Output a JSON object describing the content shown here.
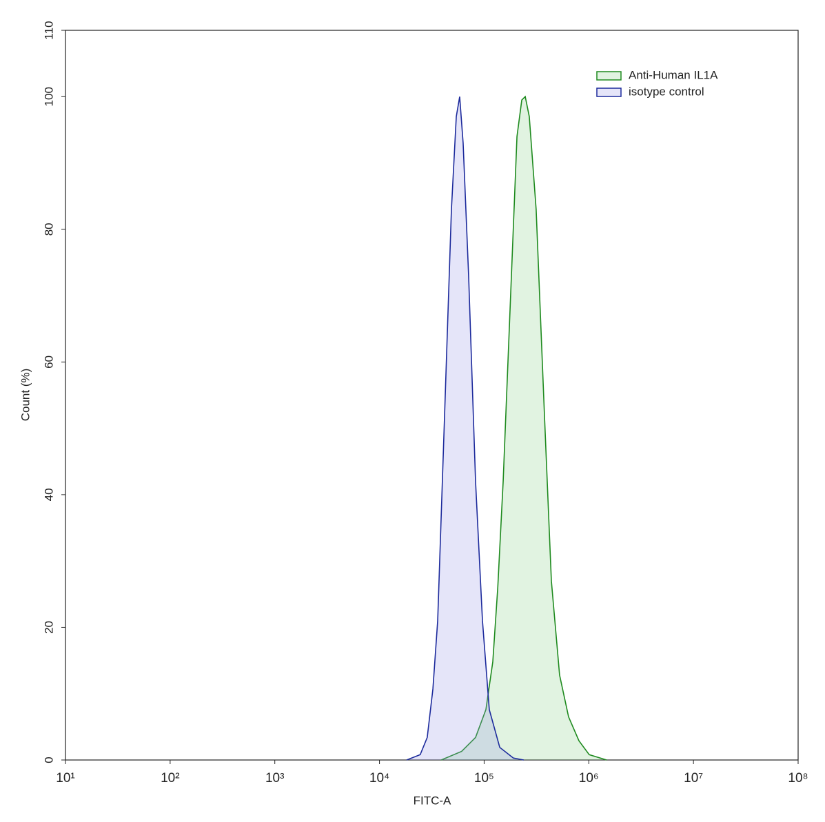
{
  "chart_data": {
    "type": "area",
    "xlabel": "FITC-A",
    "ylabel": "Count  (%)",
    "xscale": "log",
    "xlim": [
      10,
      100000000
    ],
    "xticks": [
      {
        "value": 10,
        "label": "10¹"
      },
      {
        "value": 100,
        "label": "10²"
      },
      {
        "value": 1000,
        "label": "10³"
      },
      {
        "value": 10000,
        "label": "10⁴"
      },
      {
        "value": 100000,
        "label": "10⁵"
      },
      {
        "value": 1000000,
        "label": "10⁶"
      },
      {
        "value": 10000000,
        "label": "10⁷"
      },
      {
        "value": 100000000,
        "label": "10⁸"
      }
    ],
    "ylim": [
      0,
      110
    ],
    "yticks": [
      0,
      20,
      40,
      60,
      80,
      100,
      110
    ],
    "legend": "upper right",
    "series": [
      {
        "name": "Anti-Human IL1A",
        "color": "#1e8a1e",
        "fill": "rgba(120,200,120,0.22)",
        "x": [
          38900,
          61000,
          82800,
          104000,
          121000,
          135000,
          152000,
          177000,
          206000,
          229000,
          247000,
          270000,
          314000,
          377000,
          439000,
          526000,
          641000,
          805000,
          1010000,
          1480000
        ],
        "values": [
          0,
          1.3,
          3.4,
          7.6,
          14.8,
          26,
          42,
          68,
          94,
          99.5,
          100,
          97,
          83,
          52,
          27,
          12.8,
          6.5,
          2.9,
          0.8,
          0
        ]
      },
      {
        "name": "isotype control",
        "color": "#1c2a9c",
        "fill": "rgba(150,150,230,0.25)",
        "x": [
          18200,
          24500,
          28600,
          32400,
          36000,
          41900,
          48700,
          54200,
          58400,
          63000,
          71100,
          82800,
          96400,
          112000,
          141000,
          190000,
          239000
        ],
        "values": [
          0,
          0.8,
          3.4,
          10.7,
          21,
          52,
          83,
          97,
          100,
          93,
          73,
          42,
          21,
          7.6,
          1.9,
          0.3,
          0
        ]
      }
    ]
  }
}
